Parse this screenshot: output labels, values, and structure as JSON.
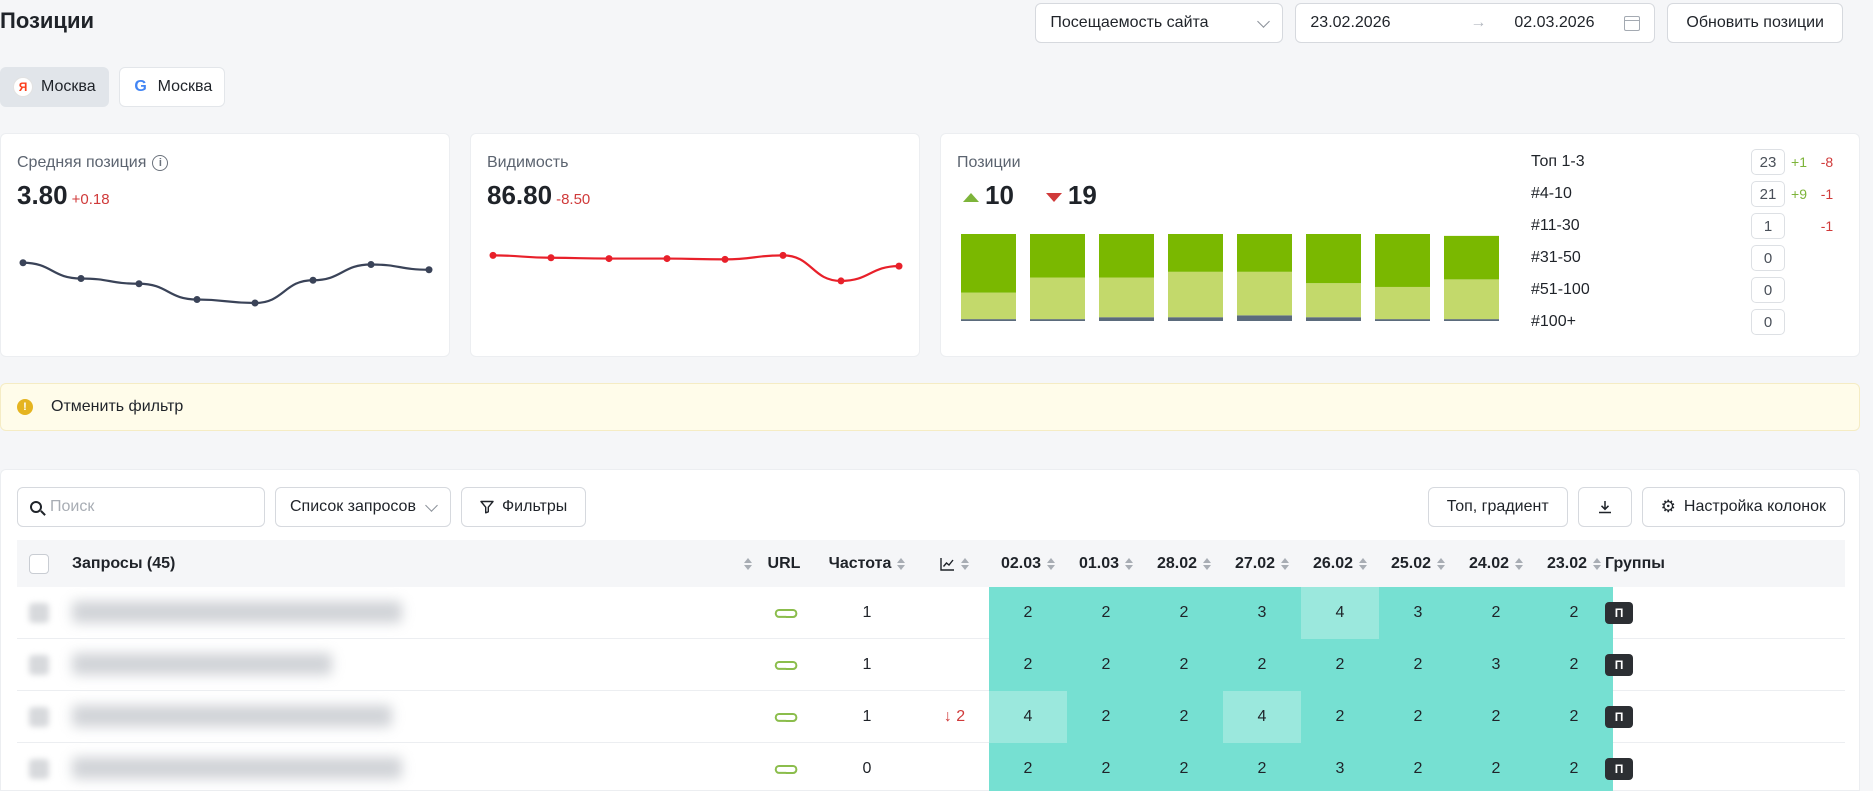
{
  "header": {
    "title": "Позиции",
    "source_select": "Посещаемость сайта",
    "date_from": "23.02.2026",
    "date_arrow": "→",
    "date_to": "02.03.2026",
    "refresh_label": "Обновить позиции"
  },
  "regions": [
    {
      "engine_icon": "Я",
      "label": "Москва",
      "active": true
    },
    {
      "engine_icon": "G",
      "label": "Москва",
      "active": false
    }
  ],
  "avg_position": {
    "label": "Средняя позиция",
    "value": "3.80",
    "delta": "+0.18",
    "trend": [
      3.4,
      3.58,
      3.64,
      3.82,
      3.86,
      3.6,
      3.42,
      3.48
    ]
  },
  "visibility": {
    "label": "Видимость",
    "value": "86.80",
    "delta": "-8.50",
    "trend": [
      95.5,
      94.6,
      94.3,
      94.3,
      94.0,
      95.5,
      86.0,
      91.5
    ]
  },
  "positions": {
    "label": "Позиции",
    "up_count": "10",
    "down_count": "19",
    "bars": [
      {
        "top3": 31,
        "top4_10": 14,
        "top11_30": 1
      },
      {
        "top3": 23,
        "top4_10": 22,
        "top11_30": 1
      },
      {
        "top3": 23,
        "top4_10": 21,
        "top11_30": 2
      },
      {
        "top3": 20,
        "top4_10": 24,
        "top11_30": 2
      },
      {
        "top3": 20,
        "top4_10": 23,
        "top11_30": 3
      },
      {
        "top3": 26,
        "top4_10": 18,
        "top11_30": 2
      },
      {
        "top3": 28,
        "top4_10": 17,
        "top11_30": 1
      },
      {
        "top3": 23,
        "top4_10": 21,
        "top11_30": 1
      }
    ],
    "distribution": [
      {
        "label": "Топ 1-3",
        "count": "23",
        "up": "+1",
        "down": "-8"
      },
      {
        "label": "#4-10",
        "count": "21",
        "up": "+9",
        "down": "-1"
      },
      {
        "label": "#11-30",
        "count": "1",
        "up": "",
        "down": "-1"
      },
      {
        "label": "#31-50",
        "count": "0",
        "up": "",
        "down": ""
      },
      {
        "label": "#51-100",
        "count": "0",
        "up": "",
        "down": ""
      },
      {
        "label": "#100+",
        "count": "0",
        "up": "",
        "down": ""
      }
    ]
  },
  "filter_bar": {
    "cancel_label": "Отменить фильтр"
  },
  "table": {
    "search_placeholder": "Поиск",
    "list_select": "Список запросов",
    "filters_label": "Фильтры",
    "top_gradient_label": "Топ, градиент",
    "columns_label": "Настройка колонок",
    "col_query": "Запросы (45)",
    "col_url": "URL",
    "col_freq": "Частота",
    "col_groups": "Группы",
    "dates": [
      "02.03",
      "01.03",
      "28.02",
      "27.02",
      "26.02",
      "25.02",
      "24.02",
      "23.02"
    ],
    "rows": [
      {
        "freq": "1",
        "trend": "",
        "positions": [
          "2",
          "2",
          "2",
          "3",
          "4",
          "3",
          "2",
          "2"
        ],
        "group": "П"
      },
      {
        "freq": "1",
        "trend": "",
        "positions": [
          "2",
          "2",
          "2",
          "2",
          "2",
          "2",
          "3",
          "2"
        ],
        "group": "П"
      },
      {
        "freq": "1",
        "trend": "↓ 2",
        "positions": [
          "4",
          "2",
          "2",
          "4",
          "2",
          "2",
          "2",
          "2"
        ],
        "group": "П"
      },
      {
        "freq": "0",
        "trend": "",
        "positions": [
          "2",
          "2",
          "2",
          "2",
          "3",
          "2",
          "2",
          "2"
        ],
        "group": "П"
      }
    ]
  },
  "colors": {
    "pos_top3": "#76e0d2",
    "pos_4_10": "#9be8dd",
    "bar_top3": "#7ab800",
    "bar_4_10": "#c3d96b",
    "bar_11_30": "#5b6b7c",
    "avg_line": "#3a4358",
    "vis_line": "#e8202a"
  }
}
